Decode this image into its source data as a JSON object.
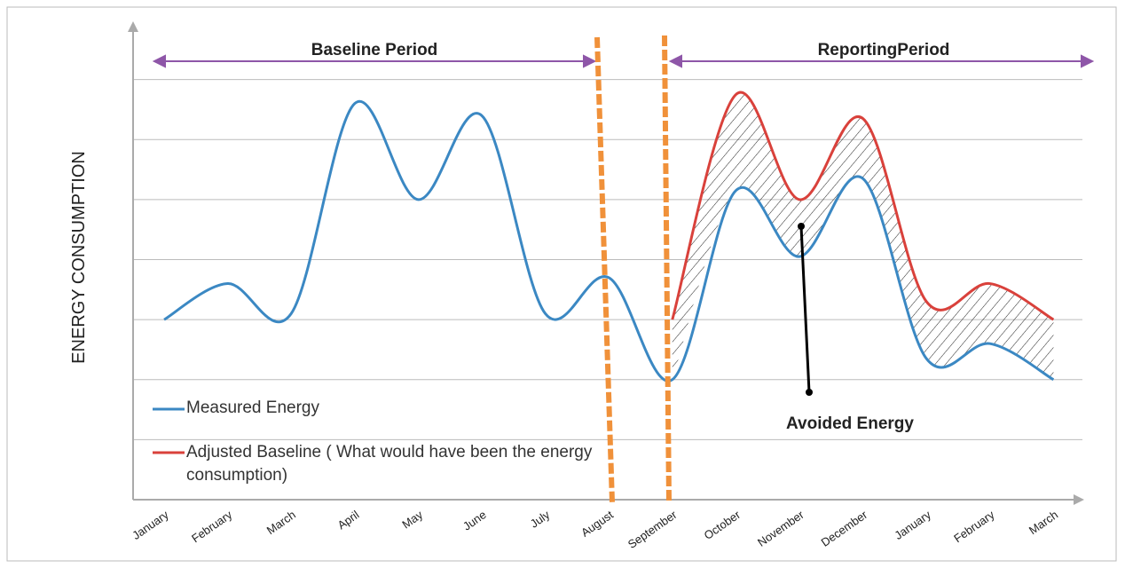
{
  "chart_data": {
    "type": "line",
    "y_label": "ENERGY CONSUMPTION",
    "annotations": [
      "Baseline Period",
      "ReportingPeriod",
      "Avoided Energy"
    ],
    "categories": [
      "January",
      "February",
      "March",
      "April",
      "May",
      "June",
      "July",
      "August",
      "September",
      "October",
      "November",
      "December",
      "January",
      "February",
      "March"
    ],
    "series": [
      {
        "name": "Measured Energy",
        "color": "#3b88c3",
        "values": [
          3.0,
          3.6,
          3.1,
          6.6,
          5.0,
          6.4,
          3.1,
          3.7,
          2.0,
          5.15,
          4.05,
          5.35,
          2.35,
          2.6,
          2.0
        ]
      },
      {
        "name": "Adjusted Baseline ( What would have been the energy consumption)",
        "color": "#d9413b",
        "values": [
          null,
          null,
          null,
          null,
          null,
          null,
          null,
          null,
          3.0,
          6.75,
          5.0,
          6.35,
          3.3,
          3.6,
          3.0
        ]
      }
    ],
    "ylim": [
      0,
      8
    ],
    "yticks": [
      1,
      2,
      3,
      4,
      5,
      6,
      7
    ],
    "grid": true
  }
}
